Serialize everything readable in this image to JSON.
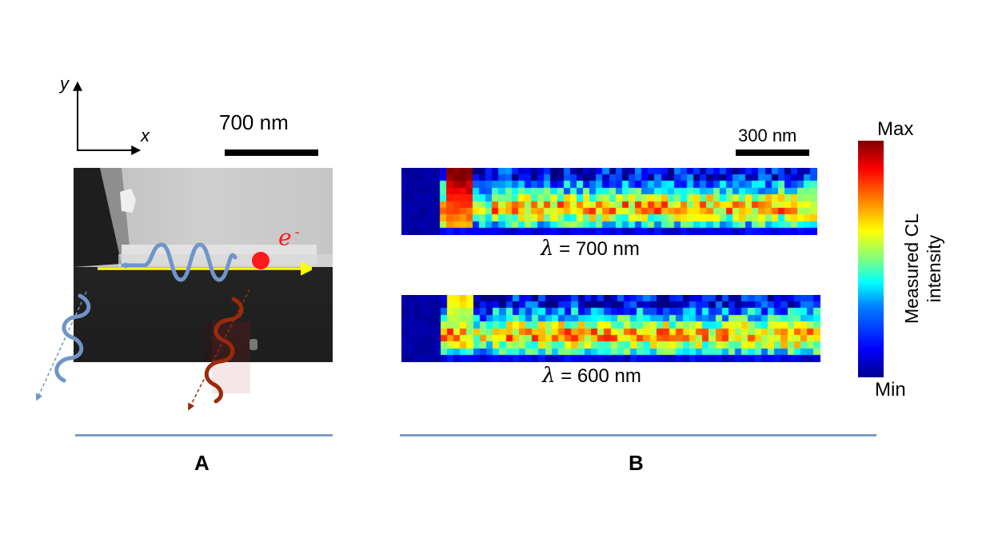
{
  "panel_a": {
    "axis_y_label": "y",
    "axis_x_label": "x",
    "scale_bar_label": "700 nm",
    "electron_label_base": "e",
    "electron_label_sup": "-",
    "panel_letter": "A",
    "colors": {
      "electron": "#ff1a1a",
      "beam_arrow": "#ffff00",
      "wave_blue": "#6f95c9",
      "wave_red": "#9b2a0b"
    }
  },
  "panel_b": {
    "scale_bar_label": "300 nm",
    "maps": [
      {
        "symbol": "λ",
        "text": " = 700 nm"
      },
      {
        "symbol": "λ",
        "text": " = 600 nm"
      }
    ],
    "panel_letter": "B",
    "colorbar": {
      "max_label": "Max",
      "min_label": "Min",
      "title_line1": "Measured CL",
      "title_line2": "intensity",
      "colormap": "jet"
    }
  }
}
